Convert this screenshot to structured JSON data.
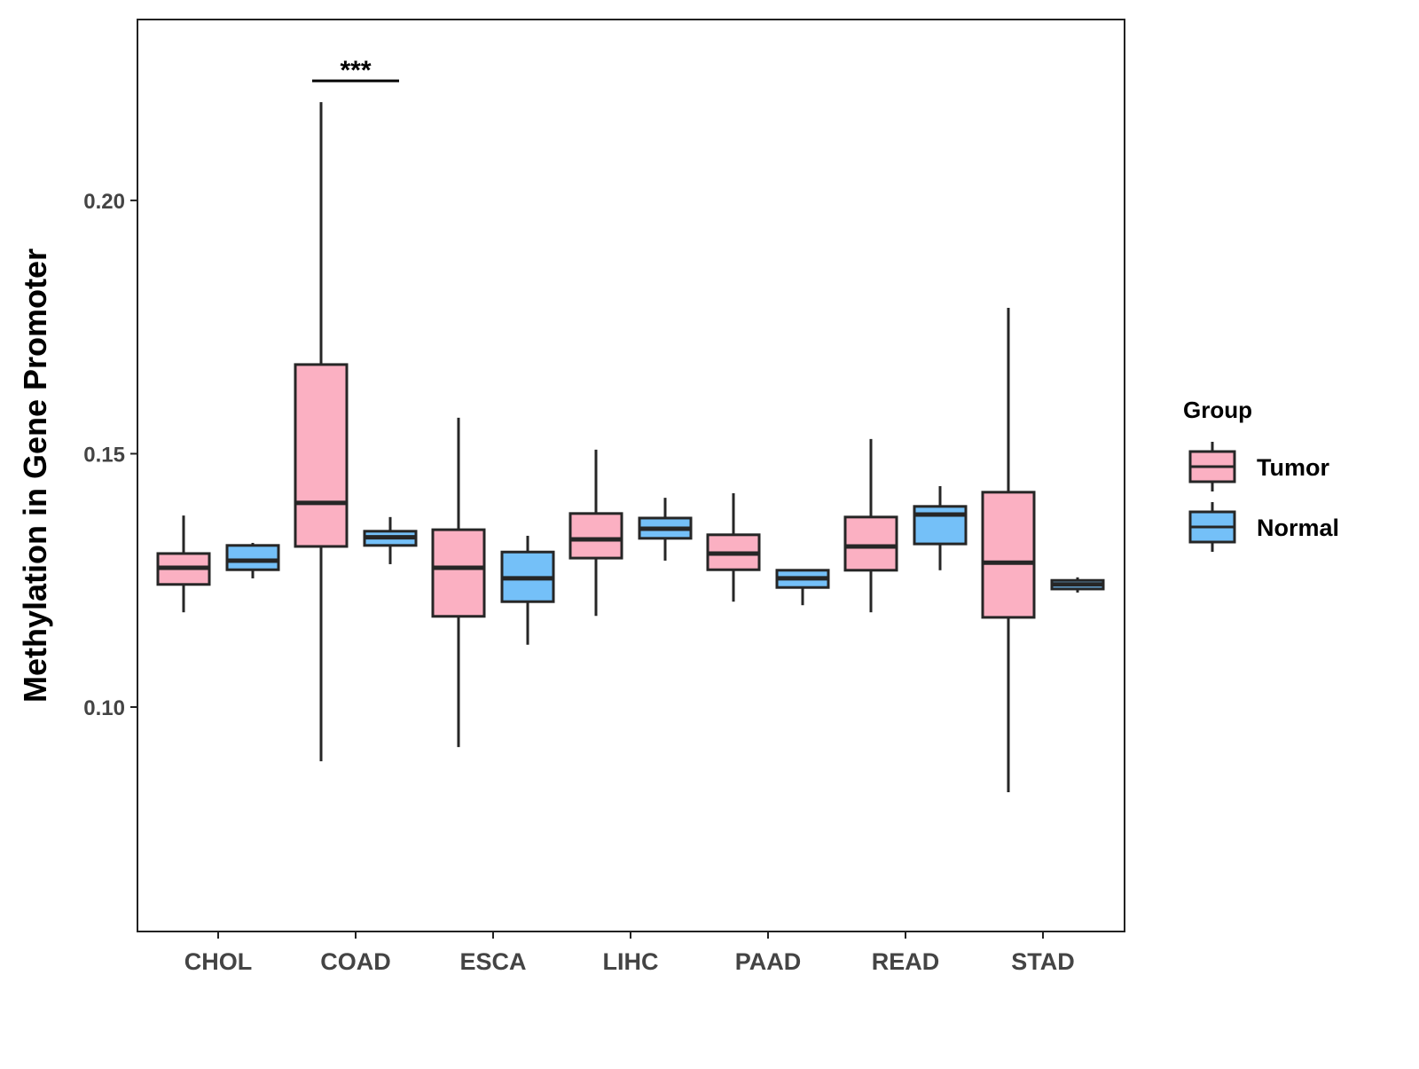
{
  "chart_data": {
    "type": "boxplot",
    "title": "",
    "xlabel": "",
    "ylabel": "Methylation in Gene Promoter",
    "ylim": [
      0.0557,
      0.2357
    ],
    "yticks": [
      0.1,
      0.15,
      0.2
    ],
    "ytick_labels": [
      "0.10",
      "0.15",
      "0.20"
    ],
    "categories": [
      "CHOL",
      "COAD",
      "ESCA",
      "LIHC",
      "PAAD",
      "READ",
      "STAD"
    ],
    "grid": false,
    "legend": {
      "title": "Group",
      "position": "right",
      "entries": [
        "Tumor",
        "Normal"
      ]
    },
    "colors": {
      "Tumor": "#FBB0C2",
      "Normal": "#74C0F8",
      "outline": "#262626"
    },
    "series": [
      {
        "name": "Tumor",
        "boxes": [
          {
            "min": 0.1187,
            "q1": 0.1242,
            "median": 0.1275,
            "q3": 0.1303,
            "max": 0.1378
          },
          {
            "min": 0.0893,
            "q1": 0.1317,
            "median": 0.1403,
            "q3": 0.1676,
            "max": 0.2194
          },
          {
            "min": 0.0921,
            "q1": 0.1179,
            "median": 0.1275,
            "q3": 0.135,
            "max": 0.1571
          },
          {
            "min": 0.118,
            "q1": 0.1294,
            "median": 0.1331,
            "q3": 0.1382,
            "max": 0.1508
          },
          {
            "min": 0.1208,
            "q1": 0.1271,
            "median": 0.1303,
            "q3": 0.134,
            "max": 0.1422
          },
          {
            "min": 0.1187,
            "q1": 0.127,
            "median": 0.1317,
            "q3": 0.1375,
            "max": 0.1529
          },
          {
            "min": 0.0832,
            "q1": 0.1177,
            "median": 0.1285,
            "q3": 0.1424,
            "max": 0.1788
          }
        ]
      },
      {
        "name": "Normal",
        "boxes": [
          {
            "min": 0.1254,
            "q1": 0.1271,
            "median": 0.1289,
            "q3": 0.1319,
            "max": 0.1324
          },
          {
            "min": 0.1282,
            "q1": 0.1319,
            "median": 0.1335,
            "q3": 0.1347,
            "max": 0.1375
          },
          {
            "min": 0.1123,
            "q1": 0.1208,
            "median": 0.1254,
            "q3": 0.1306,
            "max": 0.1338
          },
          {
            "min": 0.1289,
            "q1": 0.1333,
            "median": 0.1352,
            "q3": 0.1373,
            "max": 0.1413
          },
          {
            "min": 0.1201,
            "q1": 0.1236,
            "median": 0.1254,
            "q3": 0.127,
            "max": 0.1271
          },
          {
            "min": 0.127,
            "q1": 0.1322,
            "median": 0.138,
            "q3": 0.1396,
            "max": 0.1436
          },
          {
            "min": 0.1226,
            "q1": 0.1233,
            "median": 0.1242,
            "q3": 0.125,
            "max": 0.1256
          }
        ]
      }
    ],
    "annotations": [
      {
        "category": "COAD",
        "label": "***",
        "y": 0.2236
      }
    ]
  }
}
